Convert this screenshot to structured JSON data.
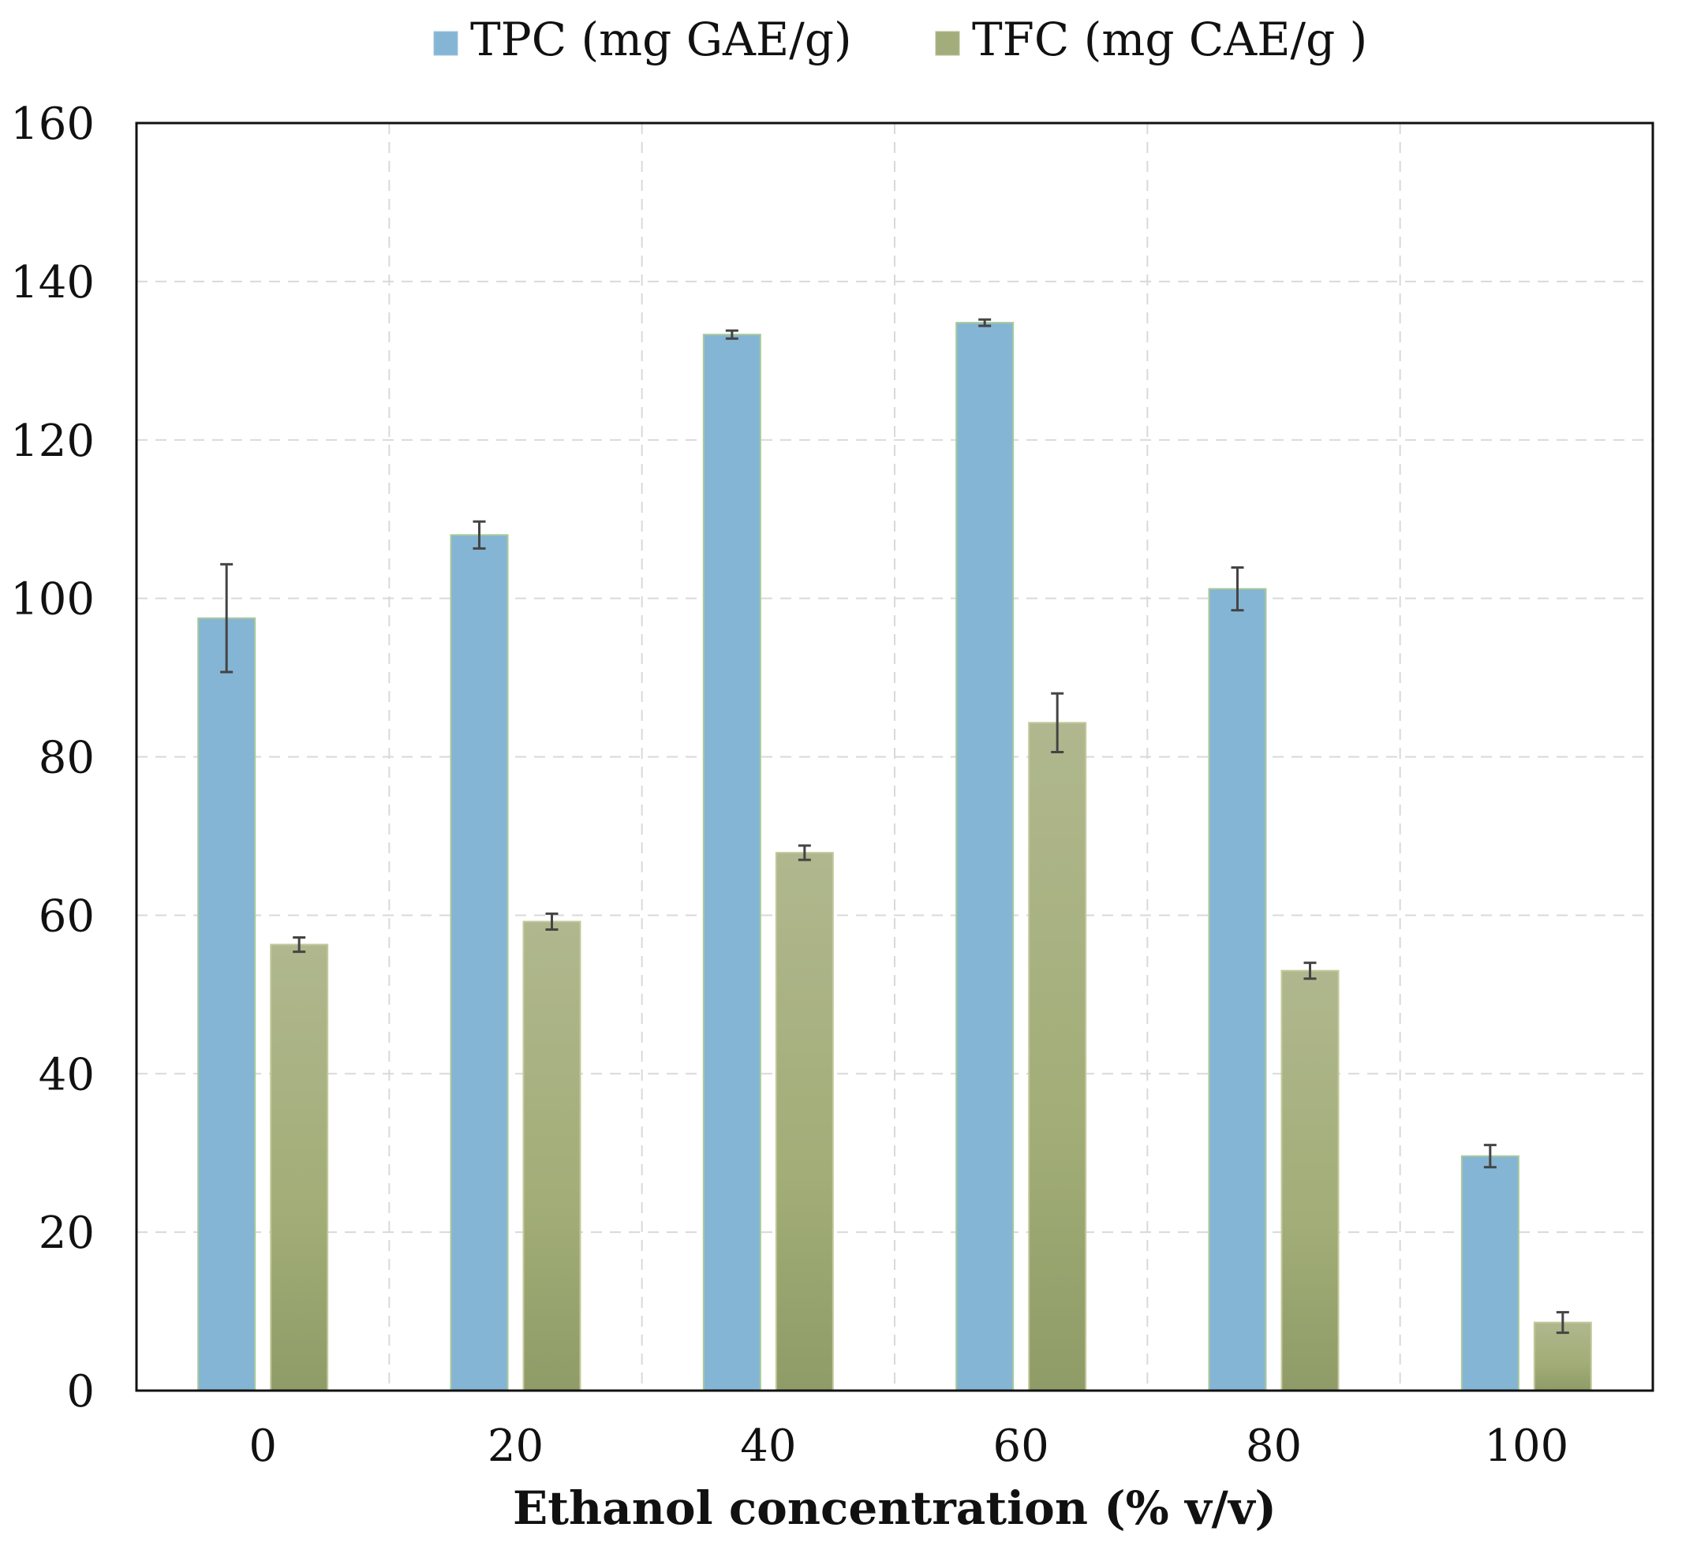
{
  "chart_data": {
    "type": "bar",
    "title": "",
    "xlabel": "Ethanol concentration (% v/v)",
    "ylabel": "",
    "ylim": [
      0,
      160
    ],
    "yticks": [
      0,
      20,
      40,
      60,
      80,
      100,
      120,
      140,
      160
    ],
    "ytick_labels": [
      "0",
      "20",
      "40",
      "60",
      "80",
      "100",
      "120",
      "140",
      "160"
    ],
    "categories": [
      "0",
      "20",
      "40",
      "60",
      "80",
      "100"
    ],
    "grid": true,
    "legend_position": "top-center",
    "series": [
      {
        "name": "TPC (mg GAE/g)",
        "color": "#85b5d5",
        "values": [
          97.5,
          108,
          133.3,
          134.8,
          101.2,
          29.6
        ],
        "errors": [
          6.8,
          1.7,
          0.5,
          0.4,
          2.7,
          1.4
        ]
      },
      {
        "name": "TFC (mg CAE/g )",
        "color": "#a3ad7c",
        "values": [
          56.3,
          59.2,
          67.9,
          84.3,
          53.0,
          8.6
        ],
        "errors": [
          0.9,
          1.0,
          0.9,
          3.7,
          1.0,
          1.3
        ]
      }
    ]
  }
}
